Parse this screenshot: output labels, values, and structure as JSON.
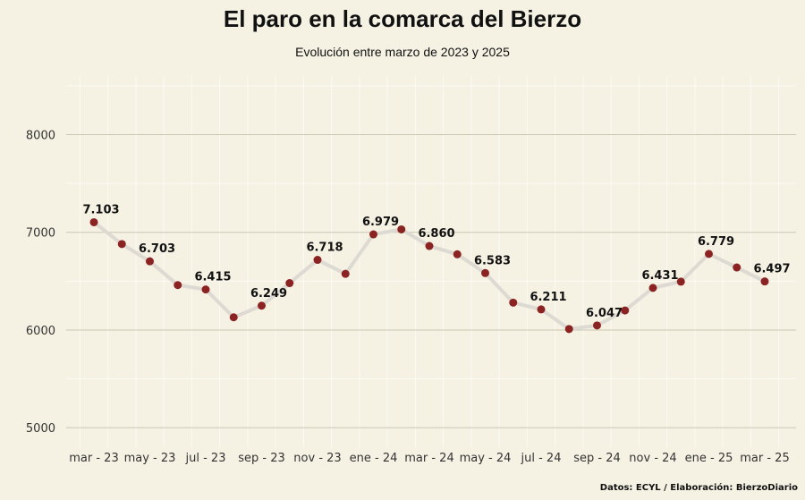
{
  "chart_data": {
    "type": "line",
    "title": "El paro en la comarca del Bierzo",
    "subtitle": "Evolución entre marzo de 2023 y 2025",
    "caption": "Datos: ECYL / Elaboración: BierzoDiario",
    "xlabel": "",
    "ylabel": "",
    "ylim": [
      4800,
      8600
    ],
    "y_ticks": [
      5000,
      6000,
      7000,
      8000
    ],
    "grid": true,
    "legend": "none",
    "x": [
      "mar - 23",
      "abr - 23",
      "may - 23",
      "jun - 23",
      "jul - 23",
      "ago - 23",
      "sep - 23",
      "oct - 23",
      "nov - 23",
      "dic - 23",
      "ene - 24",
      "feb - 24",
      "mar - 24",
      "abr - 24",
      "may - 24",
      "jun - 24",
      "jul - 24",
      "ago - 24",
      "sep - 24",
      "oct - 24",
      "nov - 24",
      "dic - 24",
      "ene - 25",
      "feb - 25",
      "mar - 25"
    ],
    "x_tick_labels": [
      "mar - 23",
      "may - 23",
      "jul - 23",
      "sep - 23",
      "nov - 23",
      "ene - 24",
      "mar - 24",
      "may - 24",
      "jul - 24",
      "sep - 24",
      "nov - 24",
      "ene - 25",
      "mar - 25"
    ],
    "series": [
      {
        "values": [
          7103,
          6880,
          6703,
          6460,
          6415,
          6130,
          6249,
          6480,
          6718,
          6575,
          6979,
          7030,
          6860,
          6775,
          6583,
          6280,
          6211,
          6010,
          6047,
          6200,
          6431,
          6495,
          6779,
          6640,
          6497
        ]
      }
    ],
    "data_labels": [
      {
        "index": 0,
        "text": "7.103"
      },
      {
        "index": 2,
        "text": "6.703"
      },
      {
        "index": 4,
        "text": "6.415"
      },
      {
        "index": 6,
        "text": "6.249"
      },
      {
        "index": 8,
        "text": "6.718"
      },
      {
        "index": 10,
        "text": "6.979"
      },
      {
        "index": 12,
        "text": "6.860"
      },
      {
        "index": 14,
        "text": "6.583"
      },
      {
        "index": 16,
        "text": "6.211"
      },
      {
        "index": 18,
        "text": "6.047"
      },
      {
        "index": 20,
        "text": "6.431"
      },
      {
        "index": 22,
        "text": "6.779"
      },
      {
        "index": 24,
        "text": "6.497"
      }
    ],
    "colors": {
      "background": "#f5f2e4",
      "line": "#dcdad2",
      "point": "#8b2323",
      "gridline_major": "#c9c6b4",
      "gridline_minor": "#fbfaf4"
    }
  }
}
